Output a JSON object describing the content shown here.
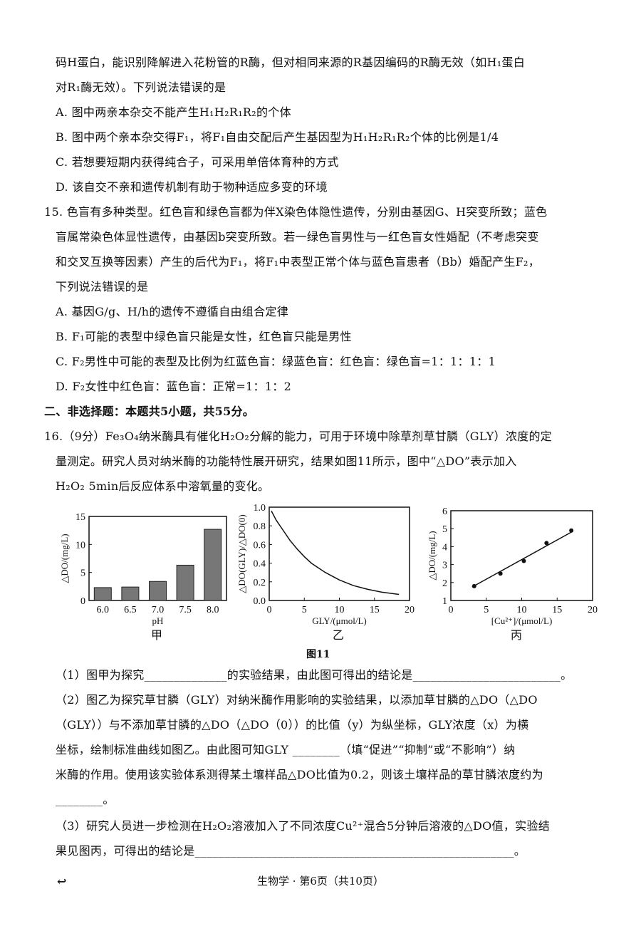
{
  "lines": [
    {
      "text": "码H蛋白，能识别降解进入花粉管的R酶，但对相同来源的R基因编码的R酶无效（如H₁蛋白",
      "cls": ""
    },
    {
      "text": "对R₁酶无效）。下列说法错误的是",
      "cls": ""
    },
    {
      "text": "A. 图中两亲本杂交不能产生H₁H₂R₁R₂的个体",
      "cls": ""
    },
    {
      "text": "B. 图中两个亲本杂交得F₁，将F₁自由交配后产生基因型为H₁H₂R₁R₂个体的比例是1/4",
      "cls": ""
    },
    {
      "text": "C. 若想要短期内获得纯合子，可采用单倍体育种的方式",
      "cls": ""
    },
    {
      "text": "D. 该自交不亲和遗传机制有助于物种适应多变的环境",
      "cls": ""
    },
    {
      "text": "15. 色盲有多种类型。红色盲和绿色盲都为伴X染色体隐性遗传，分别由基因G、H突变所致；蓝色",
      "cls": "q"
    },
    {
      "text": "盲属常染色体显性遗传，由基因b突变所致。若一绿色盲男性与一红色盲女性婚配（不考虑突变",
      "cls": ""
    },
    {
      "text": "和交叉互换等因素）产生的后代为F₁，将F₁中表型正常个体与蓝色盲患者（Bb）婚配产生F₂，",
      "cls": ""
    },
    {
      "text": "下列说法错误的是",
      "cls": ""
    },
    {
      "text": "A. 基因G/g、H/h的遗传不遵循自由组合定律",
      "cls": ""
    },
    {
      "text": "B. F₁可能的表型中绿色盲只能是女性，红色盲只能是男性",
      "cls": ""
    },
    {
      "text": "C. F₂男性中可能的表型及比例为红蓝色盲：绿蓝色盲：红色盲：绿色盲=1：1：1：1",
      "cls": ""
    },
    {
      "text": "D. F₂女性中红色盲：蓝色盲：正常=1：1：2",
      "cls": ""
    },
    {
      "text": "二、非选择题：本题共5小题，共55分。",
      "cls": "q bold"
    },
    {
      "text": "16.（9分）Fe₃O₄纳米酶具有催化H₂O₂分解的能力，可用于环境中除草剂草甘膦（GLY）浓度的定",
      "cls": "q"
    },
    {
      "text": "量测定。研究人员对纳米酶的功能特性展开研究，结果如图11所示，图中“△DO”表示加入",
      "cls": ""
    },
    {
      "text": "H₂O₂ 5min后反应体系中溶氧量的变化。",
      "cls": ""
    }
  ],
  "questions": [
    "（1）图甲为探究______________的实验结果，由此图可得出的结论是_________________________。",
    "（2）图乙为探究草甘膦（GLY）对纳米酶作用影响的实验结果，以添加草甘膦的△DO（△DO",
    "（GLY））与不添加草甘膦的△DO（△DO（0））的比值（y）为纵坐标，GLY浓度（x）为横",
    "坐标，绘制标准曲线如图乙。由此图可知GLY ________（填“促进”“抑制”或“不影响”）纳",
    "米酶的作用。使用该实验体系测得某土壤样品△DO比值为0.2，则该土壤样品的草甘膦浓度约为",
    "________。",
    "（3）研究人员进一步检测在H₂O₂溶液加入了不同浓度Cu²⁺混合5分钟后溶液的△DO值，实验结",
    "果见图丙，可得出的结论是______________________________________________________。"
  ],
  "figure_caption": "图11",
  "footer": "生物学 · 第6页（共10页）",
  "chart_data": [
    {
      "type": "bar",
      "label": "甲",
      "categories": [
        "6.0",
        "6.5",
        "7.0",
        "7.5",
        "8.0"
      ],
      "values": [
        2.3,
        2.4,
        3.4,
        6.3,
        12.7
      ],
      "xlabel": "pH",
      "ylabel": "△DO/(mg/L)",
      "ylim": [
        0,
        15
      ],
      "yticks": [
        0,
        5,
        10,
        15
      ],
      "bar_color": "#777777"
    },
    {
      "type": "line",
      "label": "乙",
      "x": [
        0.3,
        1,
        2,
        3,
        4,
        5,
        6,
        8,
        10,
        12,
        14,
        16,
        18.5
      ],
      "y": [
        0.96,
        0.86,
        0.75,
        0.64,
        0.55,
        0.47,
        0.4,
        0.3,
        0.22,
        0.16,
        0.12,
        0.09,
        0.065
      ],
      "xlabel": "GLY/(μmol/L)",
      "ylabel": "△DO(GLY)/△DO(0)",
      "xlim": [
        0,
        20
      ],
      "ylim": [
        0,
        1.0
      ],
      "xticks": [
        0,
        5,
        10,
        15,
        20
      ],
      "yticks": [
        "0.0",
        "0.2",
        "0.4",
        "0.6",
        "0.8",
        "1.0"
      ]
    },
    {
      "type": "scatter",
      "label": "丙",
      "x": [
        3.3,
        7,
        10.3,
        13.5,
        17
      ],
      "y": [
        1.8,
        2.5,
        3.2,
        4.2,
        4.9
      ],
      "fit_line": {
        "x": [
          3,
          17.2
        ],
        "y": [
          1.75,
          4.85
        ]
      },
      "xlabel": "[Cu²⁺]/(μmol/L)",
      "ylabel": "△DO/(mg/L)",
      "xlim": [
        0,
        20
      ],
      "ylim": [
        1,
        6
      ],
      "xticks": [
        0,
        5,
        10,
        15,
        20
      ],
      "yticks": [
        1,
        2,
        3,
        4,
        5,
        6
      ]
    }
  ]
}
